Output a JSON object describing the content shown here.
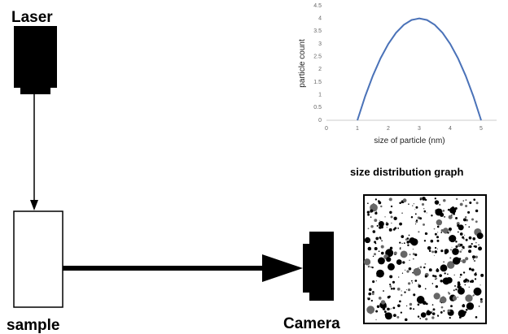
{
  "labels": {
    "laser": "Laser",
    "sample": "sample",
    "camera": "Camera",
    "graph_caption": "size distribution graph"
  },
  "chart_data": {
    "type": "line",
    "x": [
      1,
      1.25,
      1.5,
      1.75,
      2,
      2.25,
      2.5,
      2.75,
      3,
      3.25,
      3.5,
      3.75,
      4,
      4.25,
      4.5,
      4.75,
      5
    ],
    "values": [
      0,
      0.9375,
      1.75,
      2.4375,
      3,
      3.4375,
      3.75,
      3.9375,
      4,
      3.9375,
      3.75,
      3.4375,
      3,
      2.4375,
      1.75,
      0.9375,
      0
    ],
    "color": "#4a72b8",
    "x_label": "size of particle (nm)",
    "y_label": "particle count",
    "xlim": [
      0,
      5.5
    ],
    "xticks": [
      0,
      1,
      2,
      3,
      4,
      5
    ],
    "ylim": [
      0,
      4.5
    ],
    "yticks": [
      0,
      0.5,
      1,
      1.5,
      2,
      2.5,
      3,
      3.5,
      4,
      4.5
    ]
  }
}
